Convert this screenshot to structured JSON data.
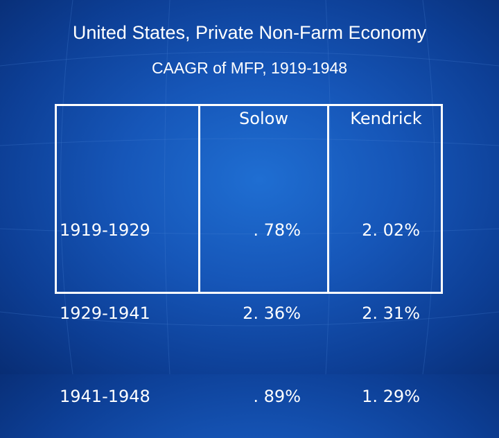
{
  "slide": {
    "title": "United States, Private Non-Farm Economy",
    "subtitle": "CAAGR of MFP, 1919-1948"
  },
  "table": {
    "columns": [
      "",
      "Solow",
      "Kendrick"
    ],
    "rows": [
      {
        "period": "1919-1929",
        "solow": ". 78%",
        "kendrick": "2. 02%"
      },
      {
        "period": "1929-1941",
        "solow": "2. 36%",
        "kendrick": "2. 31%"
      },
      {
        "period": "1941-1948",
        "solow": ". 89%",
        "kendrick": "1. 29%"
      }
    ]
  },
  "colors": {
    "background": "#1656b8",
    "text": "#ffffff",
    "rules": "#ffffff"
  }
}
